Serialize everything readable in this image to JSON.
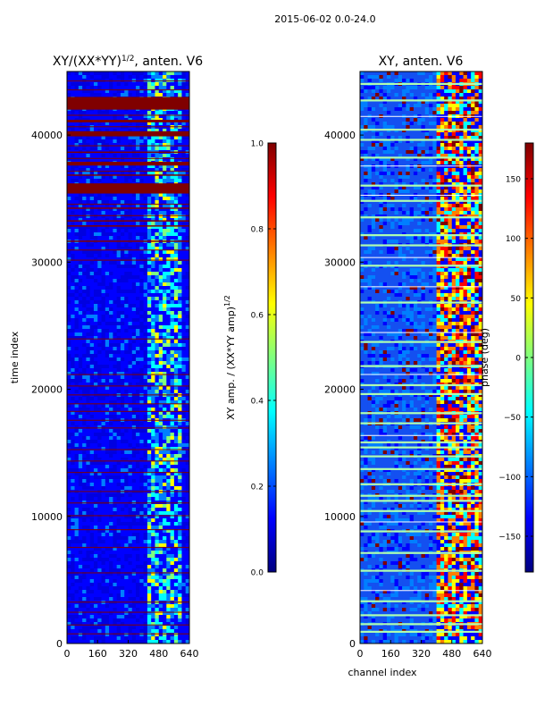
{
  "figure_title": "2015-06-02 0.0-24.0",
  "colormap": [
    "#00007f",
    "#0000ff",
    "#007fff",
    "#00ffff",
    "#7fff7f",
    "#ffff00",
    "#ff7f00",
    "#ff0000",
    "#7f0000"
  ],
  "stripe_colors": {
    "dark_red": "#800000",
    "light": "#b0ffb0",
    "white": "#ffffff"
  },
  "chart_data": [
    {
      "type": "heatmap",
      "name": "amplitude-ratio",
      "title": "XY/(XX*YY)",
      "title_sup": "1/2",
      "title_suffix": ", anten. V6",
      "xlabel": "",
      "ylabel": "time index",
      "xlim": [
        0,
        640
      ],
      "ylim": [
        0,
        45000
      ],
      "xticks": [
        0,
        160,
        320,
        480,
        640
      ],
      "yticks": [
        0,
        10000,
        20000,
        30000,
        40000
      ],
      "bright_channel_band": [
        410,
        600
      ],
      "saturated_rows": [
        [
          42000,
          43000
        ],
        [
          39900,
          40300
        ],
        [
          35400,
          36200
        ],
        [
          37600,
          37900
        ],
        [
          41000,
          41200
        ],
        [
          38600,
          38700
        ],
        [
          34200,
          34300
        ],
        [
          33200,
          33300
        ],
        [
          31600,
          31700
        ],
        [
          32800,
          32900
        ],
        [
          36800,
          36900
        ]
      ],
      "thin_rows": [
        800,
        1500,
        2500,
        3300,
        5600,
        7600,
        9000,
        10100,
        11100,
        12000,
        13500,
        14400,
        15300,
        17000,
        17600,
        18300,
        18900,
        19600,
        20300,
        21200,
        24000,
        30200,
        31000,
        33700,
        34600,
        37200,
        38200,
        39200,
        40700,
        41600,
        43600,
        44300
      ],
      "colorbar": {
        "label": "XY amp. / (XX*YY amp)",
        "label_sup": "1/2",
        "range": [
          0.0,
          1.0
        ],
        "ticks": [
          "0.0",
          "0.2",
          "0.4",
          "0.6",
          "0.8",
          "1.0"
        ],
        "tick_values": [
          0.0,
          0.2,
          0.4,
          0.6,
          0.8,
          1.0
        ]
      }
    },
    {
      "type": "heatmap",
      "name": "phase",
      "title": "XY, anten. V6",
      "xlabel": "channel index",
      "ylabel": "",
      "xlim": [
        0,
        640
      ],
      "ylim": [
        0,
        45000
      ],
      "xticks": [
        0,
        160,
        320,
        480,
        640
      ],
      "yticks": [
        0,
        10000,
        20000,
        30000,
        40000
      ],
      "bright_channel_band": [
        400,
        640
      ],
      "light_rows": [
        1000,
        1600,
        2300,
        3400,
        5800,
        7200,
        8900,
        10500,
        11300,
        11700,
        12600,
        13800,
        14800,
        15500,
        15900,
        17400,
        18200,
        19700,
        20400,
        21900,
        23800,
        26900,
        29800,
        31400,
        32200,
        33600,
        34900,
        36100,
        38300,
        39700,
        40500,
        42800,
        44100
      ],
      "white_rows": [
        4200,
        9600,
        16400,
        21200,
        24500,
        28100,
        30400,
        35300,
        37600,
        41500
      ],
      "colorbar": {
        "label": "phase (deg)",
        "range": [
          -180,
          180
        ],
        "ticks": [
          "−150",
          "−100",
          "−50",
          "0",
          "50",
          "100",
          "150"
        ],
        "tick_values": [
          -150,
          -100,
          -50,
          0,
          50,
          100,
          150
        ]
      }
    }
  ]
}
